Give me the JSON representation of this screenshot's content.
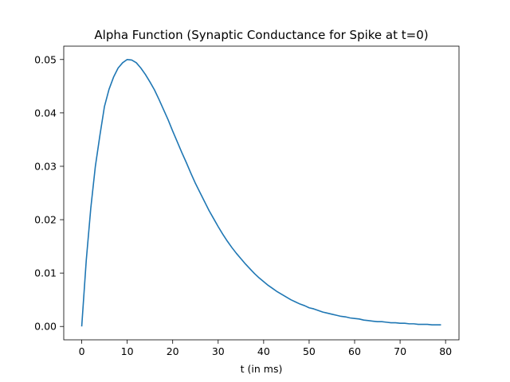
{
  "chart_data": {
    "type": "line",
    "title": "Alpha Function (Synaptic Conductance for Spike at t=0)",
    "xlabel": "t (in ms)",
    "ylabel": "",
    "xlim": [
      -3.95,
      82.95
    ],
    "ylim": [
      -0.0025,
      0.0525
    ],
    "x_ticks": [
      0,
      10,
      20,
      30,
      40,
      50,
      60,
      70,
      80
    ],
    "y_ticks": [
      0.0,
      0.01,
      0.02,
      0.03,
      0.04,
      0.05
    ],
    "x_tick_labels": [
      "0",
      "10",
      "20",
      "30",
      "40",
      "50",
      "60",
      "70",
      "80"
    ],
    "y_tick_labels": [
      "0.00",
      "0.01",
      "0.02",
      "0.03",
      "0.04",
      "0.05"
    ],
    "grid": false,
    "legend": "none",
    "series": [
      {
        "color": "#1f77b4",
        "x": [
          0,
          1,
          2,
          3,
          4,
          5,
          6,
          7,
          8,
          9,
          10,
          11,
          12,
          13,
          14,
          15,
          16,
          17,
          18,
          19,
          20,
          21,
          22,
          23,
          24,
          25,
          26,
          27,
          28,
          29,
          30,
          31,
          32,
          33,
          34,
          35,
          36,
          37,
          38,
          39,
          40,
          41,
          42,
          43,
          44,
          45,
          46,
          47,
          48,
          49,
          50,
          51,
          52,
          53,
          54,
          55,
          56,
          57,
          58,
          59,
          60,
          61,
          62,
          63,
          64,
          65,
          66,
          67,
          68,
          69,
          70,
          71,
          72,
          73,
          74,
          75,
          76,
          77,
          78,
          79
        ],
        "y": [
          0.0,
          0.0124,
          0.0222,
          0.03,
          0.0358,
          0.0412,
          0.0444,
          0.0467,
          0.0484,
          0.0494,
          0.05,
          0.0499,
          0.0494,
          0.0484,
          0.0472,
          0.0458,
          0.0443,
          0.0425,
          0.0406,
          0.0387,
          0.0366,
          0.0346,
          0.0326,
          0.0307,
          0.0287,
          0.0268,
          0.0251,
          0.0234,
          0.0217,
          0.0202,
          0.0187,
          0.0173,
          0.016,
          0.0148,
          0.0137,
          0.0127,
          0.0117,
          0.0108,
          0.0099,
          0.0091,
          0.0084,
          0.0077,
          0.0071,
          0.0065,
          0.006,
          0.0055,
          0.005,
          0.0046,
          0.0042,
          0.0039,
          0.0035,
          0.0033,
          0.003,
          0.0027,
          0.0025,
          0.0023,
          0.0021,
          0.0019,
          0.0018,
          0.0016,
          0.0015,
          0.0014,
          0.0012,
          0.0011,
          0.001,
          0.0009,
          0.0009,
          0.0008,
          0.0007,
          0.0007,
          0.0006,
          0.0006,
          0.0005,
          0.0005,
          0.0004,
          0.0004,
          0.0004,
          0.0003,
          0.0003,
          0.0003
        ]
      }
    ]
  }
}
